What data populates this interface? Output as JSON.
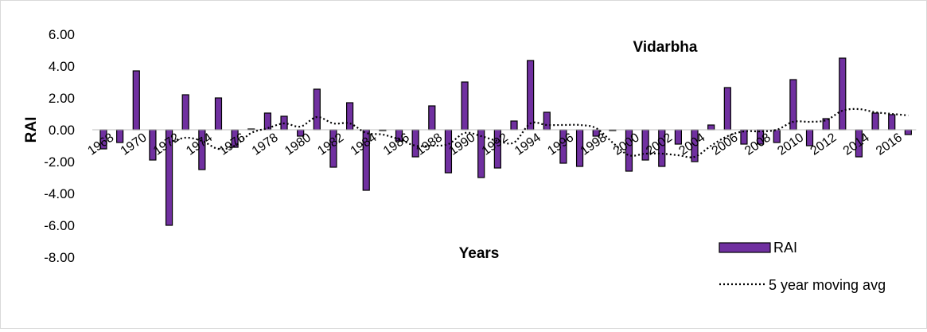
{
  "chart_data": {
    "type": "bar",
    "title": "Vidarbha",
    "xlabel": "Years",
    "ylabel": "RAI",
    "ylim": [
      -8,
      6
    ],
    "yticks": [
      "6.00",
      "4.00",
      "2.00",
      "0.00",
      "-2.00",
      "-4.00",
      "-6.00",
      "-8.00"
    ],
    "ytick_values": [
      6,
      4,
      2,
      0,
      -2,
      -4,
      -6,
      -8
    ],
    "x_tick_labels": [
      "1968",
      "1970",
      "1972",
      "1974",
      "1976",
      "1978",
      "1980",
      "1982",
      "1984",
      "1986",
      "1988",
      "1990",
      "1992",
      "1994",
      "1996",
      "1998",
      "2000",
      "2002",
      "2004",
      "2006",
      "2008",
      "2010",
      "2012",
      "2014",
      "2016"
    ],
    "x": [
      1968,
      1969,
      1970,
      1971,
      1972,
      1973,
      1974,
      1975,
      1976,
      1977,
      1978,
      1979,
      1980,
      1981,
      1982,
      1983,
      1984,
      1985,
      1986,
      1987,
      1988,
      1989,
      1990,
      1991,
      1992,
      1993,
      1994,
      1995,
      1996,
      1997,
      1998,
      1999,
      2000,
      2001,
      2002,
      2003,
      2004,
      2005,
      2006,
      2007,
      2008,
      2009,
      2010,
      2011,
      2012,
      2013,
      2014,
      2015,
      2016,
      2017
    ],
    "grid": false,
    "legend_position": "bottom-right",
    "series": [
      {
        "name": "RAI",
        "kind": "bar",
        "color": "#7030a0",
        "values": [
          -1.2,
          -0.8,
          3.7,
          -1.9,
          -6.0,
          2.2,
          -2.5,
          2.0,
          -1.1,
          0.05,
          1.05,
          0.85,
          -0.4,
          2.55,
          -2.35,
          1.7,
          -3.8,
          0.0,
          -0.7,
          -1.7,
          1.5,
          -2.7,
          3.0,
          -3.0,
          -2.4,
          0.55,
          4.35,
          1.1,
          -2.1,
          -2.3,
          -0.4,
          -0.05,
          -2.6,
          -1.9,
          -2.3,
          -0.9,
          -2.0,
          0.3,
          2.65,
          -0.9,
          -0.9,
          -0.8,
          3.15,
          -1.0,
          0.7,
          4.5,
          -1.7,
          1.05,
          0.95,
          -0.3
        ]
      },
      {
        "name": "5 year moving avg",
        "kind": "line",
        "style": "dotted",
        "color": "#000000",
        "x": [
          1972,
          1973,
          1974,
          1975,
          1976,
          1977,
          1978,
          1979,
          1980,
          1981,
          1982,
          1983,
          1984,
          1985,
          1986,
          1987,
          1988,
          1989,
          1990,
          1991,
          1992,
          1993,
          1994,
          1995,
          1996,
          1997,
          1998,
          1999,
          2000,
          2001,
          2002,
          2003,
          2004,
          2005,
          2006,
          2007,
          2008,
          2009,
          2010,
          2011,
          2012,
          2013,
          2014,
          2015,
          2016,
          2017
        ],
        "values": [
          -0.8,
          -0.5,
          -0.7,
          -1.2,
          -1.0,
          -0.2,
          0.1,
          0.4,
          0.2,
          0.8,
          0.4,
          0.4,
          -0.2,
          -0.3,
          -0.6,
          -1.0,
          -1.0,
          -0.9,
          -0.2,
          -0.4,
          -0.7,
          -0.8,
          0.4,
          0.3,
          0.3,
          0.3,
          0.1,
          -0.8,
          -1.6,
          -1.5,
          -1.5,
          -1.6,
          -1.7,
          -1.0,
          -0.4,
          -0.1,
          -0.1,
          0.0,
          0.5,
          0.5,
          0.6,
          1.2,
          1.3,
          1.1,
          1.0,
          0.9
        ]
      }
    ]
  }
}
